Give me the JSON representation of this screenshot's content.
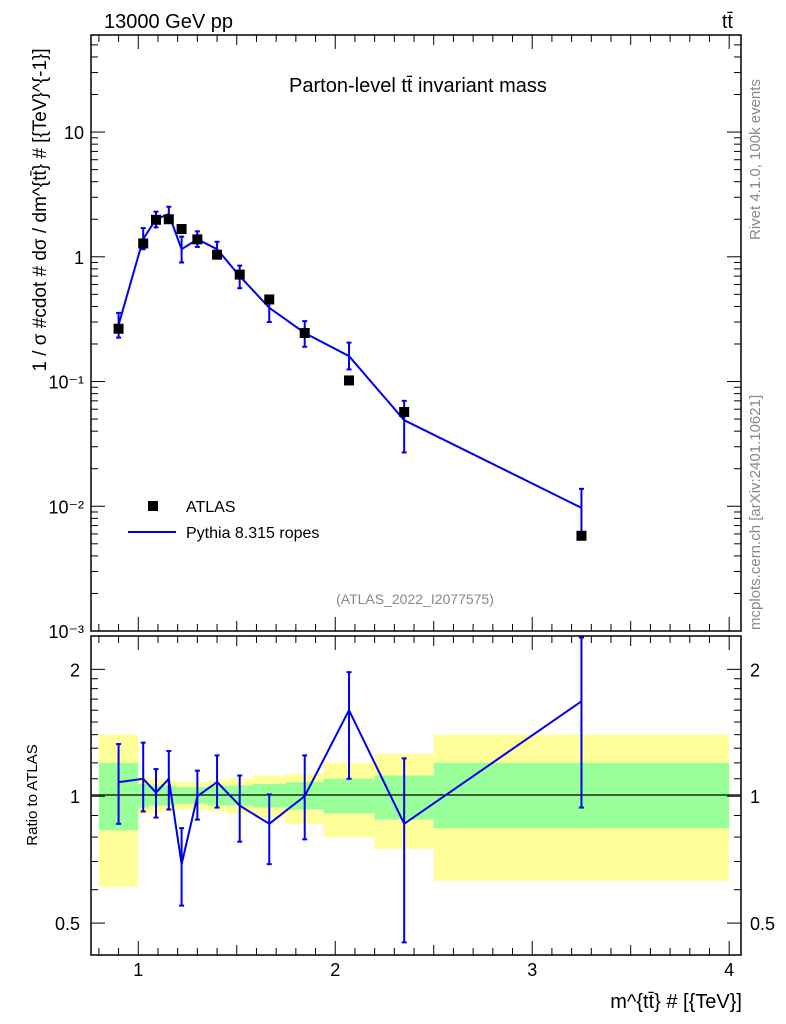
{
  "header": {
    "left": "13000 GeV pp",
    "right": "tt̄"
  },
  "side_labels": {
    "rivet": "Rivet 4.1.0,  100k events",
    "mcplots": "mcplots.cern.ch [arXiv:2401.10621]"
  },
  "chart_data": [
    {
      "type": "line",
      "title": "Parton-level tt̄ invariant mass",
      "analysis_tag": "(ATLAS_2022_I2077575)",
      "ylabel": "1 / σ #cdot # dσ / dm^{tt̄} # [{TeV}^{-1}]",
      "yscale": "log",
      "ylim": [
        0.001,
        60
      ],
      "xlim": [
        0.76,
        4.06
      ],
      "yticks": [
        {
          "value": 10,
          "label": "10"
        },
        {
          "value": 1,
          "label": "1"
        },
        {
          "value": 0.1,
          "label": "10⁻¹"
        },
        {
          "value": 0.01,
          "label": "10⁻²"
        },
        {
          "value": 0.001,
          "label": "10⁻³"
        }
      ],
      "legend": {
        "position": "bottom-left",
        "entries": [
          "ATLAS",
          "Pythia 8.315 ropes"
        ]
      },
      "series": [
        {
          "name": "ATLAS",
          "style": "markers",
          "points": [
            {
              "x": 0.9,
              "y": 0.265
            },
            {
              "x": 1.025,
              "y": 1.28
            },
            {
              "x": 1.09,
              "y": 1.98
            },
            {
              "x": 1.155,
              "y": 2.0
            },
            {
              "x": 1.22,
              "y": 1.67
            },
            {
              "x": 1.3,
              "y": 1.38
            },
            {
              "x": 1.4,
              "y": 1.04
            },
            {
              "x": 1.515,
              "y": 0.72
            },
            {
              "x": 1.665,
              "y": 0.455
            },
            {
              "x": 1.845,
              "y": 0.245
            },
            {
              "x": 2.07,
              "y": 0.102
            },
            {
              "x": 2.35,
              "y": 0.057
            },
            {
              "x": 3.25,
              "y": 0.0058
            }
          ]
        },
        {
          "name": "Pythia 8.315 ropes",
          "style": "line",
          "color": "#0000ee",
          "points": [
            {
              "x": 0.9,
              "y": 0.285,
              "lo": 0.225,
              "hi": 0.355
            },
            {
              "x": 1.025,
              "y": 1.39,
              "lo": 1.15,
              "hi": 1.7
            },
            {
              "x": 1.09,
              "y": 2.0,
              "lo": 1.72,
              "hi": 2.3
            },
            {
              "x": 1.155,
              "y": 2.2,
              "lo": 1.9,
              "hi": 2.52
            },
            {
              "x": 1.22,
              "y": 1.15,
              "lo": 0.9,
              "hi": 1.45
            },
            {
              "x": 1.3,
              "y": 1.38,
              "lo": 1.2,
              "hi": 1.6
            },
            {
              "x": 1.4,
              "y": 1.15,
              "lo": 0.98,
              "hi": 1.32
            },
            {
              "x": 1.515,
              "y": 0.7,
              "lo": 0.56,
              "hi": 0.85
            },
            {
              "x": 1.665,
              "y": 0.39,
              "lo": 0.3,
              "hi": 0.47
            },
            {
              "x": 1.845,
              "y": 0.245,
              "lo": 0.19,
              "hi": 0.305
            },
            {
              "x": 2.07,
              "y": 0.16,
              "lo": 0.125,
              "hi": 0.205
            },
            {
              "x": 2.35,
              "y": 0.049,
              "lo": 0.027,
              "hi": 0.07
            },
            {
              "x": 3.25,
              "y": 0.0097,
              "lo": 0.0055,
              "hi": 0.0138
            }
          ]
        }
      ]
    },
    {
      "type": "line",
      "ylabel": "Ratio to ATLAS",
      "xlabel": "m^{tt̄} # [{TeV}]",
      "yscale": "log",
      "ylim": [
        0.42,
        2.4
      ],
      "xlim": [
        0.76,
        4.06
      ],
      "reference_line": 1,
      "yticks": [
        {
          "value": 2,
          "label": "2"
        },
        {
          "value": 1,
          "label": "1"
        },
        {
          "value": 0.5,
          "label": "0.5"
        }
      ],
      "xticks": [
        {
          "value": 1,
          "label": "1"
        },
        {
          "value": 2,
          "label": "2"
        },
        {
          "value": 3,
          "label": "3"
        },
        {
          "value": 4,
          "label": "4"
        }
      ],
      "uncertainty_bands": [
        {
          "x0": 0.8,
          "x1": 1.0,
          "g_lo": 0.83,
          "g_hi": 1.2,
          "y_lo": 0.61,
          "y_hi": 1.4
        },
        {
          "x0": 1.0,
          "x1": 1.055,
          "g_lo": 0.94,
          "g_hi": 1.07,
          "y_lo": 0.91,
          "y_hi": 1.11
        },
        {
          "x0": 1.055,
          "x1": 1.12,
          "g_lo": 0.95,
          "g_hi": 1.06,
          "y_lo": 0.91,
          "y_hi": 1.1
        },
        {
          "x0": 1.12,
          "x1": 1.19,
          "g_lo": 0.95,
          "g_hi": 1.06,
          "y_lo": 0.92,
          "y_hi": 1.09
        },
        {
          "x0": 1.19,
          "x1": 1.25,
          "g_lo": 0.96,
          "g_hi": 1.05,
          "y_lo": 0.93,
          "y_hi": 1.08
        },
        {
          "x0": 1.25,
          "x1": 1.35,
          "g_lo": 0.96,
          "g_hi": 1.05,
          "y_lo": 0.93,
          "y_hi": 1.08
        },
        {
          "x0": 1.35,
          "x1": 1.45,
          "g_lo": 0.95,
          "g_hi": 1.06,
          "y_lo": 0.92,
          "y_hi": 1.09
        },
        {
          "x0": 1.45,
          "x1": 1.58,
          "g_lo": 0.95,
          "g_hi": 1.06,
          "y_lo": 0.91,
          "y_hi": 1.1
        },
        {
          "x0": 1.58,
          "x1": 1.75,
          "g_lo": 0.94,
          "g_hi": 1.07,
          "y_lo": 0.89,
          "y_hi": 1.12
        },
        {
          "x0": 1.75,
          "x1": 1.94,
          "g_lo": 0.93,
          "g_hi": 1.08,
          "y_lo": 0.86,
          "y_hi": 1.13
        },
        {
          "x0": 1.94,
          "x1": 2.2,
          "g_lo": 0.91,
          "g_hi": 1.1,
          "y_lo": 0.8,
          "y_hi": 1.2
        },
        {
          "x0": 2.2,
          "x1": 2.5,
          "g_lo": 0.88,
          "g_hi": 1.12,
          "y_lo": 0.75,
          "y_hi": 1.26
        },
        {
          "x0": 2.5,
          "x1": 4.0,
          "g_lo": 0.84,
          "g_hi": 1.2,
          "y_lo": 0.63,
          "y_hi": 1.4
        }
      ],
      "series": [
        {
          "name": "Pythia 8.315 ropes",
          "color": "#0000ee",
          "points": [
            {
              "x": 0.9,
              "y": 1.08,
              "lo": 0.86,
              "hi": 1.33
            },
            {
              "x": 1.025,
              "y": 1.1,
              "lo": 0.92,
              "hi": 1.34
            },
            {
              "x": 1.09,
              "y": 1.02,
              "lo": 0.89,
              "hi": 1.16
            },
            {
              "x": 1.155,
              "y": 1.1,
              "lo": 0.93,
              "hi": 1.28
            },
            {
              "x": 1.22,
              "y": 0.69,
              "lo": 0.55,
              "hi": 0.84
            },
            {
              "x": 1.3,
              "y": 1.0,
              "lo": 0.88,
              "hi": 1.15
            },
            {
              "x": 1.4,
              "y": 1.08,
              "lo": 0.94,
              "hi": 1.25
            },
            {
              "x": 1.515,
              "y": 0.95,
              "lo": 0.78,
              "hi": 1.12
            },
            {
              "x": 1.665,
              "y": 0.86,
              "lo": 0.69,
              "hi": 1.01
            },
            {
              "x": 1.845,
              "y": 1.0,
              "lo": 0.79,
              "hi": 1.25
            },
            {
              "x": 2.07,
              "y": 1.6,
              "lo": 1.1,
              "hi": 1.97
            },
            {
              "x": 2.35,
              "y": 0.86,
              "lo": 0.45,
              "hi": 1.23
            },
            {
              "x": 3.25,
              "y": 1.68,
              "lo": 0.94,
              "hi": 2.38
            }
          ]
        }
      ]
    }
  ]
}
